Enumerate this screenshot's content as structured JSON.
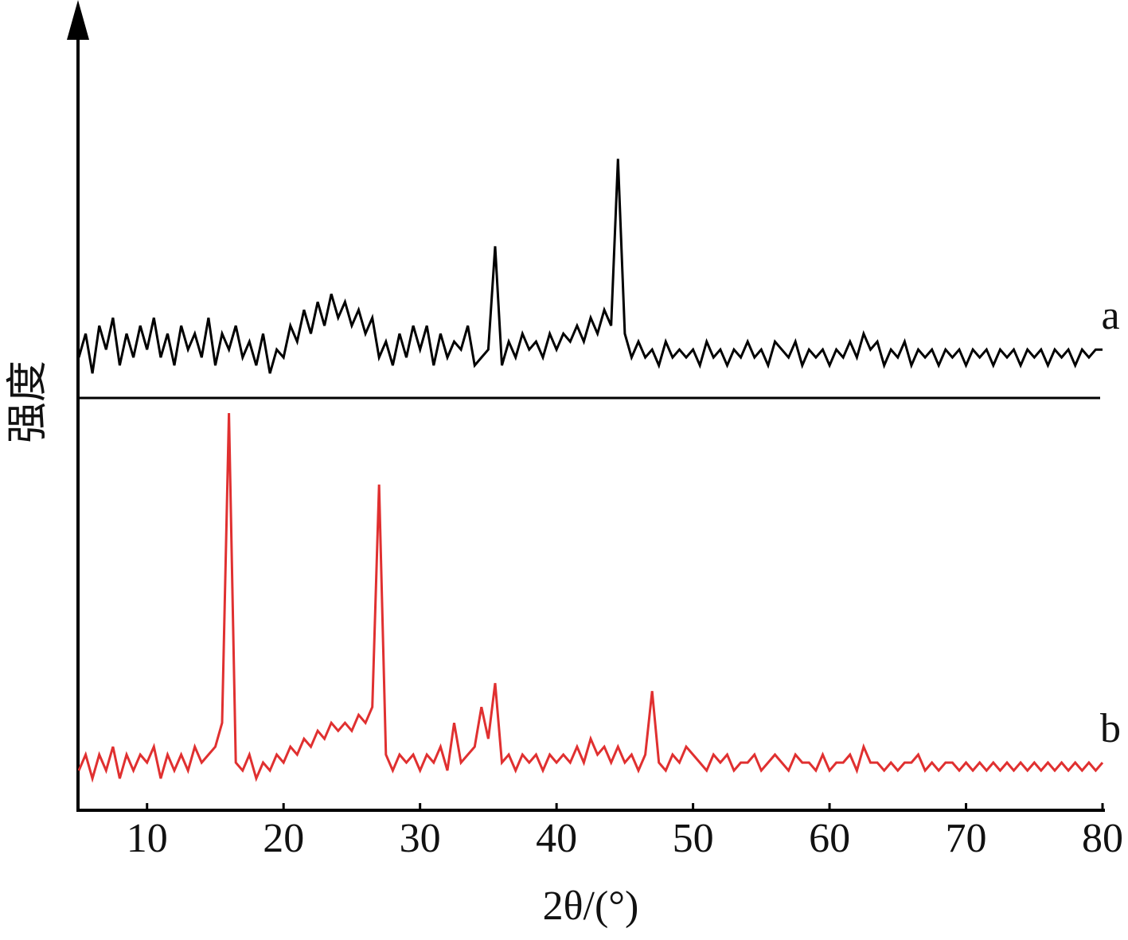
{
  "chart_data": {
    "type": "line",
    "xlabel": "2θ/(°)",
    "ylabel": "强度",
    "xlim": [
      5,
      80
    ],
    "xticks": [
      10,
      20,
      30,
      40,
      50,
      60,
      70,
      80
    ],
    "ylim": [
      0,
      100
    ],
    "x": [
      5,
      5.5,
      6,
      6.5,
      7,
      7.5,
      8,
      8.5,
      9,
      9.5,
      10,
      10.5,
      11,
      11.5,
      12,
      12.5,
      13,
      13.5,
      14,
      14.5,
      15,
      15.5,
      16,
      16.5,
      17,
      17.5,
      18,
      18.5,
      19,
      19.5,
      20,
      20.5,
      21,
      21.5,
      22,
      22.5,
      23,
      23.5,
      24,
      24.5,
      25,
      25.5,
      26,
      26.5,
      27,
      27.5,
      28,
      28.5,
      29,
      29.5,
      30,
      30.5,
      31,
      31.5,
      32,
      32.5,
      33,
      33.5,
      34,
      34.5,
      35,
      35.5,
      36,
      36.5,
      37,
      37.5,
      38,
      38.5,
      39,
      39.5,
      40,
      40.5,
      41,
      41.5,
      42,
      42.5,
      43,
      43.5,
      44,
      44.5,
      45,
      45.5,
      46,
      46.5,
      47,
      47.5,
      48,
      48.5,
      49,
      49.5,
      50,
      50.5,
      51,
      51.5,
      52,
      52.5,
      53,
      53.5,
      54,
      54.5,
      55,
      55.5,
      56,
      56.5,
      57,
      57.5,
      58,
      58.5,
      59,
      59.5,
      60,
      60.5,
      61,
      61.5,
      62,
      62.5,
      63,
      63.5,
      64,
      64.5,
      65,
      65.5,
      66,
      66.5,
      67,
      67.5,
      68,
      68.5,
      69,
      69.5,
      70,
      70.5,
      71,
      71.5,
      72,
      72.5,
      73,
      73.5,
      74,
      74.5,
      75,
      75.5,
      76,
      76.5,
      77,
      77.5,
      78,
      78.5,
      79,
      79.5,
      80
    ],
    "series": [
      {
        "name": "a",
        "color": "#000000",
        "values": [
          57,
          60,
          55,
          61,
          58,
          62,
          56,
          60,
          57,
          61,
          58,
          62,
          57,
          60,
          56,
          61,
          58,
          60,
          57,
          62,
          56,
          60,
          58,
          61,
          57,
          59,
          56,
          60,
          55,
          58,
          57,
          61,
          59,
          63,
          60,
          64,
          61,
          65,
          62,
          64,
          61,
          63,
          60,
          62,
          57,
          59,
          56,
          60,
          57,
          61,
          58,
          61,
          56,
          60,
          57,
          59,
          58,
          61,
          56,
          57,
          58,
          71,
          56,
          59,
          57,
          60,
          58,
          59,
          57,
          60,
          58,
          60,
          59,
          61,
          59,
          62,
          60,
          63,
          61,
          82,
          60,
          57,
          59,
          57,
          58,
          56,
          59,
          57,
          58,
          57,
          58,
          56,
          59,
          57,
          58,
          56,
          58,
          57,
          59,
          57,
          58,
          56,
          59,
          58,
          57,
          59,
          56,
          58,
          57,
          58,
          56,
          58,
          57,
          59,
          57,
          60,
          58,
          59,
          56,
          58,
          57,
          59,
          56,
          58,
          57,
          58,
          56,
          58,
          57,
          58,
          56,
          58,
          57,
          58,
          56,
          58,
          57,
          58,
          56,
          58,
          57,
          58,
          56,
          58,
          57,
          58,
          56,
          58,
          57,
          58,
          58
        ]
      },
      {
        "name": "b",
        "color": "#e03030",
        "values": [
          5,
          7,
          4,
          7,
          5,
          8,
          4,
          7,
          5,
          7,
          6,
          8,
          4,
          7,
          5,
          7,
          5,
          8,
          6,
          7,
          8,
          11,
          50,
          6,
          5,
          7,
          4,
          6,
          5,
          7,
          6,
          8,
          7,
          9,
          8,
          10,
          9,
          11,
          10,
          11,
          10,
          12,
          11,
          13,
          41,
          7,
          5,
          7,
          6,
          7,
          5,
          7,
          6,
          8,
          5,
          11,
          6,
          7,
          8,
          13,
          9,
          16,
          6,
          7,
          5,
          7,
          6,
          7,
          5,
          7,
          6,
          7,
          6,
          8,
          6,
          9,
          7,
          8,
          6,
          8,
          6,
          7,
          5,
          7,
          15,
          6,
          5,
          7,
          6,
          8,
          7,
          6,
          5,
          7,
          6,
          7,
          5,
          6,
          6,
          7,
          5,
          6,
          7,
          6,
          5,
          7,
          6,
          6,
          5,
          7,
          5,
          6,
          6,
          7,
          5,
          8,
          6,
          6,
          5,
          6,
          5,
          6,
          6,
          7,
          5,
          6,
          5,
          6,
          6,
          5,
          6,
          5,
          6,
          5,
          6,
          5,
          6,
          5,
          6,
          5,
          6,
          5,
          6,
          5,
          6,
          5,
          6,
          5,
          6,
          5,
          6
        ]
      }
    ]
  }
}
